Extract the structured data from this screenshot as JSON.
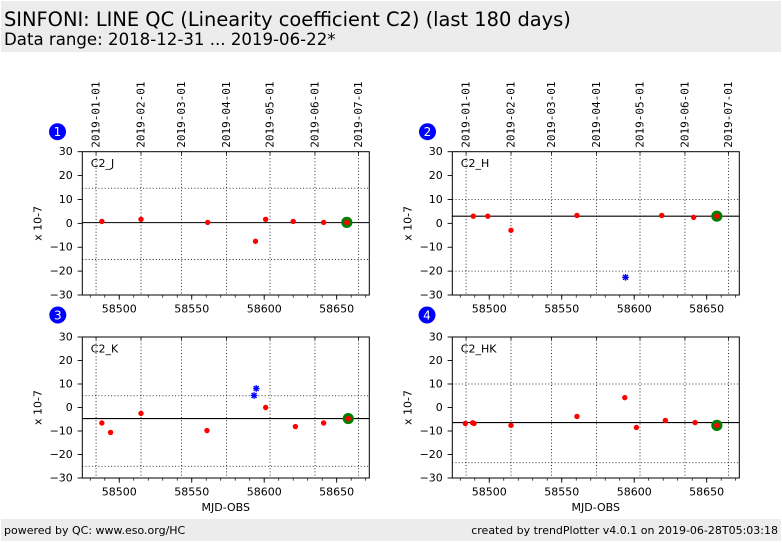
{
  "header": {
    "title": "SINFONI: LINE QC (Linearity coefficient C2) (last 180 days)",
    "subtitle": "Data range: 2018-12-31 ... 2019-06-22*"
  },
  "footer": {
    "left": "powered by QC: www.eso.org/HC",
    "right": "created by trendPlotter v4.0.1 on 2019-06-28T05:03:18"
  },
  "colors": {
    "point": "#ff0000",
    "outlier": "#0000ff",
    "latest": "#008000",
    "badge": "#0000ff",
    "header_bg": "#ececec"
  },
  "chart_data": [
    {
      "type": "scatter",
      "badge": "1",
      "name": "C2_J",
      "ylabel": "x 10-7",
      "xlabel": "",
      "xlim": [
        58474.5,
        58672.5
      ],
      "ylim": [
        -30,
        30
      ],
      "grid": "dates-only",
      "minor_tick_step": 10,
      "yticks": [
        {
          "value": 30,
          "label": "30"
        },
        {
          "value": 20,
          "label": "20"
        },
        {
          "value": 10,
          "label": "10"
        },
        {
          "value": 0,
          "label": "0"
        },
        {
          "value": -10,
          "label": "−10"
        },
        {
          "value": -20,
          "label": "−20"
        },
        {
          "value": -30,
          "label": "−30"
        }
      ],
      "xticks": [
        {
          "value": 58500,
          "label": "58500"
        },
        {
          "value": 58550,
          "label": "58550"
        },
        {
          "value": 58600,
          "label": "58600"
        },
        {
          "value": 58650,
          "label": "58650"
        }
      ],
      "date_ticks": [
        {
          "mjd": 58484,
          "label": "2019-01-01"
        },
        {
          "mjd": 58515,
          "label": "2019-02-01"
        },
        {
          "mjd": 58543,
          "label": "2019-03-01"
        },
        {
          "mjd": 58574,
          "label": "2019-04-01"
        },
        {
          "mjd": 58604,
          "label": "2019-05-01"
        },
        {
          "mjd": 58635,
          "label": "2019-06-01"
        },
        {
          "mjd": 58665,
          "label": "2019-07-01"
        }
      ],
      "reference": 0.3,
      "thresholds": [
        14.7,
        -15.1
      ],
      "points": [
        [
          58488,
          0.8
        ],
        [
          58515,
          1.7
        ],
        [
          58561,
          0.4
        ],
        [
          58594,
          -7.5
        ],
        [
          58601,
          1.7
        ],
        [
          58620,
          0.8
        ],
        [
          58641,
          0.4
        ]
      ],
      "outliers": [],
      "latest": [
        58657,
        0.4
      ]
    },
    {
      "type": "scatter",
      "badge": "2",
      "name": "C2_H",
      "ylabel": "x 10-7",
      "xlabel": "",
      "xlim": [
        58474.5,
        58672.5
      ],
      "ylim": [
        -30,
        30
      ],
      "grid": "dates-only",
      "minor_tick_step": 10,
      "yticks": [
        {
          "value": 30,
          "label": "30"
        },
        {
          "value": 20,
          "label": "20"
        },
        {
          "value": 10,
          "label": "10"
        },
        {
          "value": 0,
          "label": "0"
        },
        {
          "value": -10,
          "label": "−10"
        },
        {
          "value": -20,
          "label": "−20"
        },
        {
          "value": -30,
          "label": "−30"
        }
      ],
      "xticks": [
        {
          "value": 58500,
          "label": "58500"
        },
        {
          "value": 58550,
          "label": "58550"
        },
        {
          "value": 58600,
          "label": "58600"
        },
        {
          "value": 58650,
          "label": "58650"
        }
      ],
      "date_ticks": [
        {
          "mjd": 58484,
          "label": "2019-01-01"
        },
        {
          "mjd": 58515,
          "label": "2019-02-01"
        },
        {
          "mjd": 58543,
          "label": "2019-03-01"
        },
        {
          "mjd": 58574,
          "label": "2019-04-01"
        },
        {
          "mjd": 58604,
          "label": "2019-05-01"
        },
        {
          "mjd": 58635,
          "label": "2019-06-01"
        },
        {
          "mjd": 58665,
          "label": "2019-07-01"
        }
      ],
      "reference": 3.0,
      "thresholds": [
        10,
        -20
      ],
      "points": [
        [
          58489,
          3.0
        ],
        [
          58499,
          3.0
        ],
        [
          58515,
          -2.9
        ],
        [
          58560.5,
          3.3
        ],
        [
          58619,
          3.3
        ],
        [
          58641,
          2.5
        ]
      ],
      "outliers": [
        [
          58594,
          -22.6
        ]
      ],
      "latest": [
        58657,
        3.0
      ]
    },
    {
      "type": "scatter",
      "badge": "3",
      "name": "C2_K",
      "ylabel": "x 10-7",
      "xlabel": "MJD-OBS",
      "xlim": [
        58474.5,
        58672.5
      ],
      "ylim": [
        -30,
        30
      ],
      "grid": "dates-only",
      "minor_tick_step": 10,
      "yticks": [
        {
          "value": 30,
          "label": "30"
        },
        {
          "value": 20,
          "label": "20"
        },
        {
          "value": 10,
          "label": "10"
        },
        {
          "value": 0,
          "label": "0"
        },
        {
          "value": -10,
          "label": "−10"
        },
        {
          "value": -20,
          "label": "−20"
        },
        {
          "value": -30,
          "label": "−30"
        }
      ],
      "xticks": [
        {
          "value": 58500,
          "label": "58500"
        },
        {
          "value": 58550,
          "label": "58550"
        },
        {
          "value": 58600,
          "label": "58600"
        },
        {
          "value": 58650,
          "label": "58650"
        }
      ],
      "date_ticks": [
        {
          "mjd": 58484
        },
        {
          "mjd": 58515
        },
        {
          "mjd": 58543
        },
        {
          "mjd": 58574
        },
        {
          "mjd": 58604
        },
        {
          "mjd": 58635
        },
        {
          "mjd": 58665
        }
      ],
      "reference": -4.7,
      "thresholds": [
        5,
        -25
      ],
      "points": [
        [
          58488,
          -6.6
        ],
        [
          58494,
          -10.6
        ],
        [
          58515,
          -2.5
        ],
        [
          58560.5,
          -9.8
        ],
        [
          58601,
          0.0
        ],
        [
          58621.5,
          -8.1
        ],
        [
          58641,
          -6.6
        ]
      ],
      "outliers": [
        [
          58593,
          5.1
        ],
        [
          58594.5,
          8.1
        ]
      ],
      "latest": [
        58658,
        -4.7
      ]
    },
    {
      "type": "scatter",
      "badge": "4",
      "name": "C2_HK",
      "ylabel": "x 10-7",
      "xlabel": "MJD-OBS",
      "xlim": [
        58474.5,
        58672.5
      ],
      "ylim": [
        -30,
        30
      ],
      "grid": "dates-only",
      "minor_tick_step": 10,
      "yticks": [
        {
          "value": 30,
          "label": "30"
        },
        {
          "value": 20,
          "label": "20"
        },
        {
          "value": 10,
          "label": "10"
        },
        {
          "value": 0,
          "label": "0"
        },
        {
          "value": -10,
          "label": "−10"
        },
        {
          "value": -20,
          "label": "−20"
        },
        {
          "value": -30,
          "label": "−30"
        }
      ],
      "xticks": [
        {
          "value": 58500,
          "label": "58500"
        },
        {
          "value": 58550,
          "label": "58550"
        },
        {
          "value": 58600,
          "label": "58600"
        },
        {
          "value": 58650,
          "label": "58650"
        }
      ],
      "date_ticks": [
        {
          "mjd": 58484
        },
        {
          "mjd": 58515
        },
        {
          "mjd": 58543
        },
        {
          "mjd": 58574
        },
        {
          "mjd": 58604
        },
        {
          "mjd": 58635
        },
        {
          "mjd": 58665
        }
      ],
      "reference": -6.4,
      "thresholds": [
        10,
        -23.5
      ],
      "points": [
        [
          58483.5,
          -6.8
        ],
        [
          58488.5,
          -6.5
        ],
        [
          58489.5,
          -6.8
        ],
        [
          58515,
          -7.6
        ],
        [
          58560.5,
          -3.8
        ],
        [
          58593.5,
          4.2
        ],
        [
          58601.5,
          -8.5
        ],
        [
          58621.5,
          -5.5
        ],
        [
          58642,
          -6.4
        ]
      ],
      "outliers": [],
      "latest": [
        58657,
        -7.6
      ]
    }
  ]
}
